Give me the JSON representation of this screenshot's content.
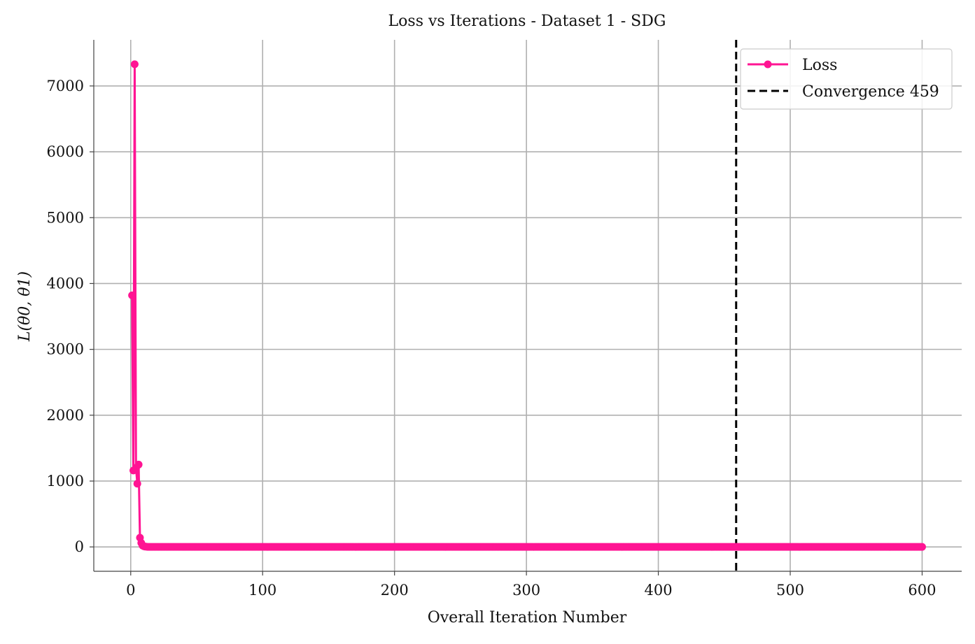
{
  "chart_data": {
    "type": "line",
    "title": "Loss vs Iterations - Dataset 1 - SDG",
    "xlabel": "Overall Iteration Number",
    "ylabel": "L(θ0, θ1)",
    "xlim": [
      -28,
      630
    ],
    "ylim": [
      -370,
      7700
    ],
    "xticks": [
      0,
      100,
      200,
      300,
      400,
      500,
      600
    ],
    "yticks": [
      0,
      1000,
      2000,
      3000,
      4000,
      5000,
      6000,
      7000
    ],
    "grid": true,
    "legend_position": "top-right",
    "series": [
      {
        "name": "Loss",
        "color": "#ff1493",
        "style": "solid-with-markers",
        "x_start": 1,
        "x_end": 600,
        "initial_values": [
          [
            1,
            3820
          ],
          [
            2,
            1160
          ],
          [
            3,
            7330
          ],
          [
            4,
            1200
          ],
          [
            5,
            960
          ],
          [
            6,
            1250
          ],
          [
            7,
            140
          ],
          [
            8,
            60
          ],
          [
            9,
            20
          ],
          [
            10,
            10
          ],
          [
            11,
            5
          ],
          [
            12,
            3
          ]
        ],
        "tail_value": 0
      }
    ],
    "reference_lines": [
      {
        "name": "Convergence 459",
        "type": "vertical",
        "x": 459,
        "color": "#000000",
        "style": "dashed"
      }
    ]
  }
}
